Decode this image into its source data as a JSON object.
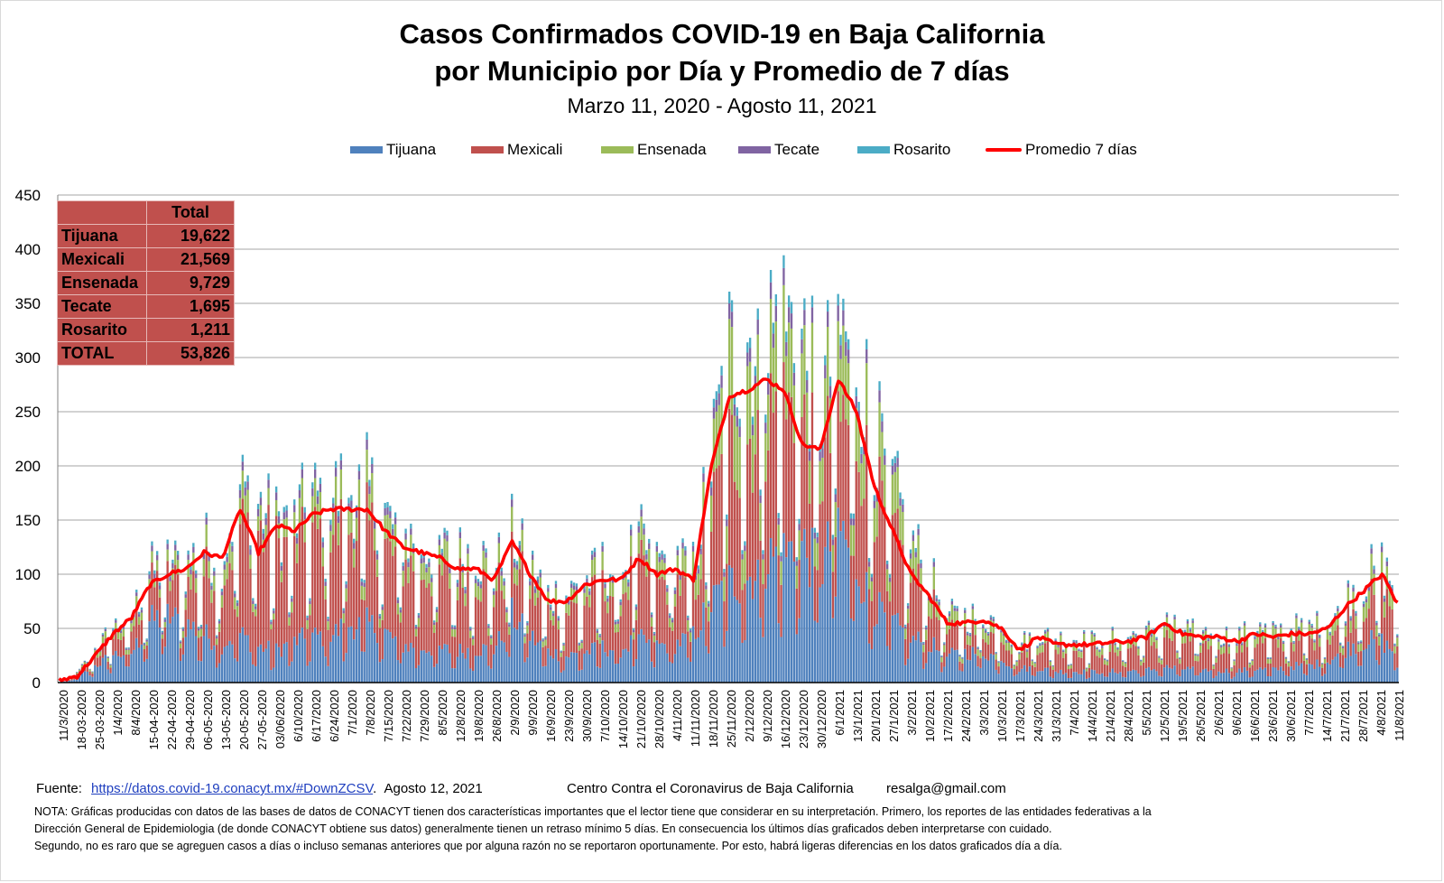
{
  "title": {
    "line1": "Casos Confirmados COVID-19 en Baja California",
    "line2": "por Municipio por Día y Promedio de 7 días",
    "subtitle": "Marzo 11, 2020  - Agosto 11, 2021"
  },
  "colors": {
    "tijuana": "#4f81bd",
    "mexicali": "#c0504d",
    "ensenada": "#9bbb59",
    "tecate": "#8064a2",
    "rosarito": "#4bacc6",
    "promedio": "#ff0000",
    "grid": "#a6a6a6"
  },
  "legend": {
    "tijuana": "Tijuana",
    "mexicali": "Mexicali",
    "ensenada": "Ensenada",
    "tecate": "Tecate",
    "rosarito": "Rosarito",
    "promedio": "Promedio 7 días"
  },
  "totals": {
    "header": "Total",
    "rows": [
      {
        "name": "Tijuana",
        "value": "19,622"
      },
      {
        "name": "Mexicali",
        "value": "21,569"
      },
      {
        "name": "Ensenada",
        "value": "9,729"
      },
      {
        "name": "Tecate",
        "value": "1,695"
      },
      {
        "name": "Rosarito",
        "value": "1,211"
      },
      {
        "name": "TOTAL",
        "value": "53,826"
      }
    ]
  },
  "chart_data": {
    "type": "bar",
    "stacked": true,
    "x_range": [
      "11/3/2020",
      "11/8/2021"
    ],
    "ylim": [
      0,
      450
    ],
    "yticks": [
      0,
      50,
      100,
      150,
      200,
      250,
      300,
      350,
      400,
      450
    ],
    "grid": true,
    "legend_position": "top",
    "xtick_labels": [
      "11/3/2020",
      "18-03-2020",
      "25-03-2020",
      "1/4/2020",
      "8/4/2020",
      "15-04-2020",
      "22-04-2020",
      "29-04-2020",
      "06-05-2020",
      "13-05-2020",
      "20-05-2020",
      "27-05-2020",
      "03/06/2020",
      "6/10/2020",
      "6/17/2020",
      "6/24/2020",
      "7/1/2020",
      "7/8/2020",
      "7/15/2020",
      "7/22/2020",
      "7/29/2020",
      "8/5/2020",
      "12/8/2020",
      "19/8/2020",
      "26/8/2020",
      "2/9/2020",
      "9/9/2020",
      "16/9/2020",
      "23/9/2020",
      "30/9/2020",
      "7/10/2020",
      "14/10/2020",
      "21/10/2020",
      "28/10/2020",
      "4/11/2020",
      "11/11/2020",
      "18/11/2020",
      "25/11/2020",
      "2/12/2020",
      "9/12/2020",
      "16/12/2020",
      "23/12/2020",
      "30/12/2020",
      "6/1/2021",
      "13/1/2021",
      "20/1/2021",
      "27/1/2021",
      "3/2/2021",
      "10/2/2021",
      "17/2/2021",
      "24/2/2021",
      "3/3/2021",
      "10/3/2021",
      "17/3/2021",
      "24/3/2021",
      "31/3/2021",
      "7/4/2021",
      "14/4/2021",
      "21/4/2021",
      "28/4/2021",
      "5/5/2021",
      "12/5/2021",
      "19/5/2021",
      "26/5/2021",
      "2/6/2021",
      "9/6/2021",
      "16/6/2021",
      "23/6/2021",
      "30/6/2021",
      "7/7/2021",
      "14/7/2021",
      "21/7/2021",
      "28/7/2021",
      "4/8/2021",
      "11/8/2021"
    ],
    "series": [
      {
        "name": "Tijuana"
      },
      {
        "name": "Mexicali"
      },
      {
        "name": "Ensenada"
      },
      {
        "name": "Tecate"
      },
      {
        "name": "Rosarito"
      },
      {
        "name": "Promedio 7 días"
      }
    ],
    "weekly_total": [
      3,
      8,
      30,
      50,
      60,
      100,
      110,
      105,
      125,
      115,
      175,
      160,
      145,
      150,
      165,
      170,
      175,
      178,
      150,
      135,
      125,
      120,
      115,
      120,
      100,
      135,
      105,
      80,
      80,
      90,
      105,
      100,
      130,
      110,
      115,
      105,
      200,
      300,
      310,
      320,
      330,
      310,
      250,
      320,
      300,
      230,
      180,
      130,
      100,
      60,
      60,
      60,
      55,
      35,
      45,
      40,
      40,
      38,
      40,
      42,
      45,
      55,
      50,
      45,
      45,
      40,
      50,
      45,
      50,
      50,
      55,
      75,
      95,
      105,
      80
    ],
    "weekly_tijuana_share": [
      0.55,
      0.55,
      0.5,
      0.5,
      0.45,
      0.55,
      0.55,
      0.5,
      0.35,
      0.3,
      0.25,
      0.2,
      0.2,
      0.25,
      0.25,
      0.25,
      0.3,
      0.3,
      0.3,
      0.25,
      0.25,
      0.25,
      0.25,
      0.25,
      0.3,
      0.45,
      0.4,
      0.35,
      0.3,
      0.3,
      0.3,
      0.3,
      0.3,
      0.3,
      0.3,
      0.4,
      0.35,
      0.3,
      0.3,
      0.35,
      0.35,
      0.4,
      0.4,
      0.45,
      0.35,
      0.3,
      0.3,
      0.3,
      0.35,
      0.4,
      0.45,
      0.45,
      0.4,
      0.35,
      0.3,
      0.25,
      0.25,
      0.25,
      0.25,
      0.25,
      0.25,
      0.25,
      0.25,
      0.25,
      0.25,
      0.25,
      0.25,
      0.25,
      0.3,
      0.3,
      0.35,
      0.4,
      0.4,
      0.35,
      0.3
    ],
    "weekly_mexicali_share": [
      0.3,
      0.3,
      0.3,
      0.3,
      0.35,
      0.3,
      0.3,
      0.3,
      0.45,
      0.5,
      0.55,
      0.65,
      0.65,
      0.55,
      0.55,
      0.55,
      0.5,
      0.5,
      0.5,
      0.55,
      0.55,
      0.55,
      0.55,
      0.55,
      0.5,
      0.35,
      0.4,
      0.45,
      0.5,
      0.5,
      0.5,
      0.5,
      0.5,
      0.5,
      0.5,
      0.35,
      0.4,
      0.4,
      0.4,
      0.4,
      0.4,
      0.35,
      0.35,
      0.3,
      0.4,
      0.45,
      0.45,
      0.45,
      0.4,
      0.35,
      0.3,
      0.3,
      0.35,
      0.4,
      0.45,
      0.5,
      0.5,
      0.5,
      0.5,
      0.5,
      0.5,
      0.5,
      0.5,
      0.5,
      0.5,
      0.5,
      0.5,
      0.5,
      0.45,
      0.45,
      0.4,
      0.35,
      0.35,
      0.4,
      0.45
    ],
    "promedio_weekly": [
      2,
      6,
      25,
      45,
      60,
      90,
      100,
      105,
      120,
      115,
      160,
      120,
      145,
      140,
      155,
      160,
      160,
      160,
      140,
      125,
      120,
      115,
      105,
      105,
      95,
      130,
      100,
      75,
      75,
      90,
      95,
      95,
      115,
      100,
      105,
      95,
      200,
      265,
      270,
      280,
      270,
      220,
      215,
      280,
      250,
      180,
      140,
      100,
      80,
      55,
      55,
      58,
      50,
      30,
      42,
      35,
      35,
      35,
      37,
      38,
      42,
      55,
      45,
      42,
      42,
      38,
      45,
      42,
      45,
      45,
      50,
      70,
      85,
      100,
      68
    ]
  },
  "footer": {
    "fuente_label": "Fuente:",
    "url": "https://datos.covid-19.conacyt.mx/#DownZCSV",
    "fecha": "Agosto 12, 2021",
    "centro": "Centro Contra el Coronavirus de Baja California",
    "email": "resalga@gmail.com"
  },
  "notes": [
    "NOTA: Gráficas producidas con datos de las bases de datos de CONACYT tienen dos características importantes que el lector tiene que considerar en su interpretación.  Primero, los reportes de las entidades federativas  a la",
    "Dirección General  de Epidemiologia (de donde CONACYT obtiene sus datos) generalmente  tienen un retraso mínimo 5 días. En consecuencia los últimos días graficados deben interpretarse  con cuidado.",
    "Segundo, no es raro que se agreguen casos a días o incluso semanas anteriores que por alguna razón no se reportaron  oportunamente.  Por esto, habrá ligeras diferencias en los datos  graficados día a día."
  ]
}
